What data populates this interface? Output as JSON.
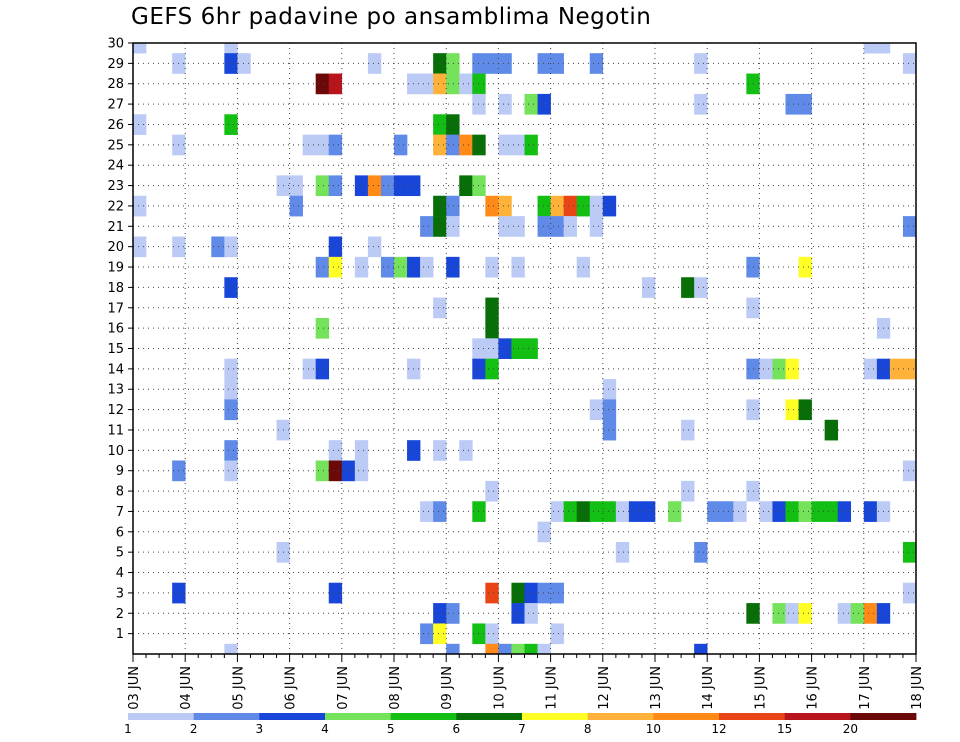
{
  "title": "GEFS 6hr padavine po ansamblima Negotin",
  "chart_data": {
    "type": "heatmap",
    "title": "GEFS 6hr padavine po ansamblima Negotin",
    "x_tick_labels": [
      "03 JUN",
      "04 JUN",
      "05 JUN",
      "06 JUN",
      "07 JUN",
      "08 JUN",
      "09 JUN",
      "10 JUN",
      "11 JUN",
      "12 JUN",
      "13 JUN",
      "14 JUN",
      "15 JUN",
      "16 JUN",
      "17 JUN",
      "18 JUN"
    ],
    "y_tick_labels": [
      "1",
      "2",
      "3",
      "4",
      "5",
      "6",
      "7",
      "8",
      "9",
      "10",
      "11",
      "12",
      "13",
      "14",
      "15",
      "16",
      "17",
      "18",
      "19",
      "20",
      "21",
      "22",
      "23",
      "24",
      "25",
      "26",
      "27",
      "28",
      "29",
      "30"
    ],
    "x_steps_per_day": 4,
    "x_range_steps": [
      0,
      60
    ],
    "y_range_members": [
      0,
      30
    ],
    "grid": "dotted",
    "colorbar": {
      "position": "bottom",
      "labels": [
        "1",
        "2",
        "3",
        "4",
        "5",
        "6",
        "7",
        "8",
        "10",
        "12",
        "15",
        "20"
      ],
      "colors": [
        "#bccbf5",
        "#5f8ae8",
        "#1746d8",
        "#74e25a",
        "#12bf12",
        "#086f08",
        "#ffff26",
        "#ffb23a",
        "#ff8a17",
        "#e84415",
        "#b8141c",
        "#6b0808"
      ]
    },
    "cells_note": "each cell: [x_step, ensemble_member, precipitation_class_index 0-11]",
    "cells": [
      [
        0,
        30,
        0
      ],
      [
        7,
        30,
        0
      ],
      [
        56,
        30,
        0
      ],
      [
        57,
        30,
        0
      ],
      [
        3,
        29,
        0
      ],
      [
        7,
        29,
        2
      ],
      [
        8,
        29,
        0
      ],
      [
        18,
        29,
        0
      ],
      [
        23,
        29,
        5
      ],
      [
        24,
        29,
        3
      ],
      [
        26,
        29,
        1
      ],
      [
        27,
        29,
        1
      ],
      [
        28,
        29,
        1
      ],
      [
        31,
        29,
        1
      ],
      [
        32,
        29,
        1
      ],
      [
        35,
        29,
        1
      ],
      [
        43,
        29,
        0
      ],
      [
        59,
        29,
        0
      ],
      [
        14,
        28,
        11
      ],
      [
        15,
        28,
        10
      ],
      [
        21,
        28,
        0
      ],
      [
        22,
        28,
        0
      ],
      [
        23,
        28,
        7
      ],
      [
        24,
        28,
        3
      ],
      [
        25,
        28,
        0
      ],
      [
        26,
        28,
        4
      ],
      [
        47,
        28,
        4
      ],
      [
        26,
        27,
        0
      ],
      [
        28,
        27,
        0
      ],
      [
        30,
        27,
        3
      ],
      [
        31,
        27,
        2
      ],
      [
        43,
        27,
        0
      ],
      [
        50,
        27,
        1
      ],
      [
        51,
        27,
        1
      ],
      [
        0,
        26,
        0
      ],
      [
        7,
        26,
        4
      ],
      [
        23,
        26,
        4
      ],
      [
        24,
        26,
        5
      ],
      [
        3,
        25,
        0
      ],
      [
        13,
        25,
        0
      ],
      [
        14,
        25,
        0
      ],
      [
        15,
        25,
        1
      ],
      [
        20,
        25,
        1
      ],
      [
        23,
        25,
        7
      ],
      [
        24,
        25,
        1
      ],
      [
        25,
        25,
        8
      ],
      [
        26,
        25,
        5
      ],
      [
        28,
        25,
        0
      ],
      [
        29,
        25,
        0
      ],
      [
        30,
        25,
        4
      ],
      [
        11,
        23,
        0
      ],
      [
        12,
        23,
        0
      ],
      [
        14,
        23,
        3
      ],
      [
        15,
        23,
        1
      ],
      [
        17,
        23,
        2
      ],
      [
        18,
        23,
        8
      ],
      [
        19,
        23,
        1
      ],
      [
        20,
        23,
        2
      ],
      [
        21,
        23,
        2
      ],
      [
        25,
        23,
        5
      ],
      [
        26,
        23,
        3
      ],
      [
        0,
        22,
        0
      ],
      [
        12,
        22,
        1
      ],
      [
        23,
        22,
        5
      ],
      [
        24,
        22,
        1
      ],
      [
        27,
        22,
        8
      ],
      [
        28,
        22,
        7
      ],
      [
        31,
        22,
        4
      ],
      [
        32,
        22,
        7
      ],
      [
        33,
        22,
        9
      ],
      [
        34,
        22,
        4
      ],
      [
        35,
        22,
        0
      ],
      [
        36,
        22,
        2
      ],
      [
        22,
        21,
        1
      ],
      [
        23,
        21,
        5
      ],
      [
        24,
        21,
        0
      ],
      [
        28,
        21,
        0
      ],
      [
        29,
        21,
        0
      ],
      [
        31,
        21,
        1
      ],
      [
        32,
        21,
        1
      ],
      [
        33,
        21,
        0
      ],
      [
        35,
        21,
        0
      ],
      [
        59,
        21,
        1
      ],
      [
        0,
        20,
        0
      ],
      [
        3,
        20,
        0
      ],
      [
        6,
        20,
        1
      ],
      [
        7,
        20,
        0
      ],
      [
        15,
        20,
        2
      ],
      [
        18,
        20,
        0
      ],
      [
        14,
        19,
        1
      ],
      [
        15,
        19,
        6
      ],
      [
        17,
        19,
        0
      ],
      [
        19,
        19,
        1
      ],
      [
        20,
        19,
        3
      ],
      [
        21,
        19,
        2
      ],
      [
        22,
        19,
        0
      ],
      [
        24,
        19,
        2
      ],
      [
        27,
        19,
        0
      ],
      [
        29,
        19,
        0
      ],
      [
        34,
        19,
        0
      ],
      [
        47,
        19,
        1
      ],
      [
        51,
        19,
        6
      ],
      [
        7,
        18,
        2
      ],
      [
        39,
        18,
        0
      ],
      [
        42,
        18,
        5
      ],
      [
        43,
        18,
        0
      ],
      [
        23,
        17,
        0
      ],
      [
        27,
        17,
        5
      ],
      [
        47,
        17,
        0
      ],
      [
        14,
        16,
        3
      ],
      [
        27,
        16,
        5
      ],
      [
        57,
        16,
        0
      ],
      [
        26,
        15,
        0
      ],
      [
        27,
        15,
        0
      ],
      [
        28,
        15,
        2
      ],
      [
        29,
        15,
        4
      ],
      [
        30,
        15,
        4
      ],
      [
        7,
        14,
        0
      ],
      [
        13,
        14,
        0
      ],
      [
        14,
        14,
        2
      ],
      [
        21,
        14,
        0
      ],
      [
        26,
        14,
        2
      ],
      [
        27,
        14,
        4
      ],
      [
        47,
        14,
        1
      ],
      [
        48,
        14,
        0
      ],
      [
        49,
        14,
        3
      ],
      [
        50,
        14,
        6
      ],
      [
        56,
        14,
        0
      ],
      [
        57,
        14,
        2
      ],
      [
        58,
        14,
        7
      ],
      [
        59,
        14,
        7
      ],
      [
        7,
        13,
        0
      ],
      [
        36,
        13,
        0
      ],
      [
        7,
        12,
        1
      ],
      [
        35,
        12,
        0
      ],
      [
        36,
        12,
        1
      ],
      [
        47,
        12,
        0
      ],
      [
        50,
        12,
        6
      ],
      [
        51,
        12,
        5
      ],
      [
        11,
        11,
        0
      ],
      [
        36,
        11,
        1
      ],
      [
        42,
        11,
        0
      ],
      [
        53,
        11,
        5
      ],
      [
        7,
        10,
        1
      ],
      [
        15,
        10,
        0
      ],
      [
        17,
        10,
        0
      ],
      [
        21,
        10,
        2
      ],
      [
        23,
        10,
        0
      ],
      [
        25,
        10,
        0
      ],
      [
        3,
        9,
        1
      ],
      [
        7,
        9,
        0
      ],
      [
        14,
        9,
        3
      ],
      [
        15,
        9,
        11
      ],
      [
        16,
        9,
        2
      ],
      [
        17,
        9,
        0
      ],
      [
        59,
        9,
        0
      ],
      [
        27,
        8,
        0
      ],
      [
        42,
        8,
        0
      ],
      [
        47,
        8,
        0
      ],
      [
        22,
        7,
        0
      ],
      [
        23,
        7,
        1
      ],
      [
        26,
        7,
        4
      ],
      [
        32,
        7,
        0
      ],
      [
        33,
        7,
        4
      ],
      [
        34,
        7,
        5
      ],
      [
        35,
        7,
        4
      ],
      [
        36,
        7,
        4
      ],
      [
        37,
        7,
        0
      ],
      [
        38,
        7,
        2
      ],
      [
        39,
        7,
        2
      ],
      [
        41,
        7,
        3
      ],
      [
        44,
        7,
        1
      ],
      [
        45,
        7,
        1
      ],
      [
        46,
        7,
        0
      ],
      [
        48,
        7,
        0
      ],
      [
        49,
        7,
        2
      ],
      [
        50,
        7,
        4
      ],
      [
        51,
        7,
        3
      ],
      [
        52,
        7,
        4
      ],
      [
        53,
        7,
        4
      ],
      [
        54,
        7,
        2
      ],
      [
        56,
        7,
        2
      ],
      [
        57,
        7,
        0
      ],
      [
        31,
        6,
        0
      ],
      [
        11,
        5,
        0
      ],
      [
        37,
        5,
        0
      ],
      [
        43,
        5,
        1
      ],
      [
        59,
        5,
        4
      ],
      [
        3,
        3,
        2
      ],
      [
        15,
        3,
        2
      ],
      [
        27,
        3,
        9
      ],
      [
        29,
        3,
        5
      ],
      [
        30,
        3,
        2
      ],
      [
        31,
        3,
        1
      ],
      [
        32,
        3,
        1
      ],
      [
        59,
        3,
        0
      ],
      [
        23,
        2,
        2
      ],
      [
        24,
        2,
        1
      ],
      [
        29,
        2,
        2
      ],
      [
        30,
        2,
        0
      ],
      [
        47,
        2,
        5
      ],
      [
        49,
        2,
        3
      ],
      [
        50,
        2,
        0
      ],
      [
        51,
        2,
        6
      ],
      [
        54,
        2,
        0
      ],
      [
        55,
        2,
        3
      ],
      [
        56,
        2,
        8
      ],
      [
        57,
        2,
        2
      ],
      [
        22,
        1,
        1
      ],
      [
        23,
        1,
        6
      ],
      [
        26,
        1,
        4
      ],
      [
        27,
        1,
        0
      ],
      [
        32,
        1,
        0
      ],
      [
        7,
        0,
        0
      ],
      [
        24,
        0,
        1
      ],
      [
        27,
        0,
        8
      ],
      [
        28,
        0,
        1
      ],
      [
        29,
        0,
        3
      ],
      [
        30,
        0,
        4
      ],
      [
        31,
        0,
        0
      ],
      [
        43,
        0,
        2
      ]
    ]
  }
}
